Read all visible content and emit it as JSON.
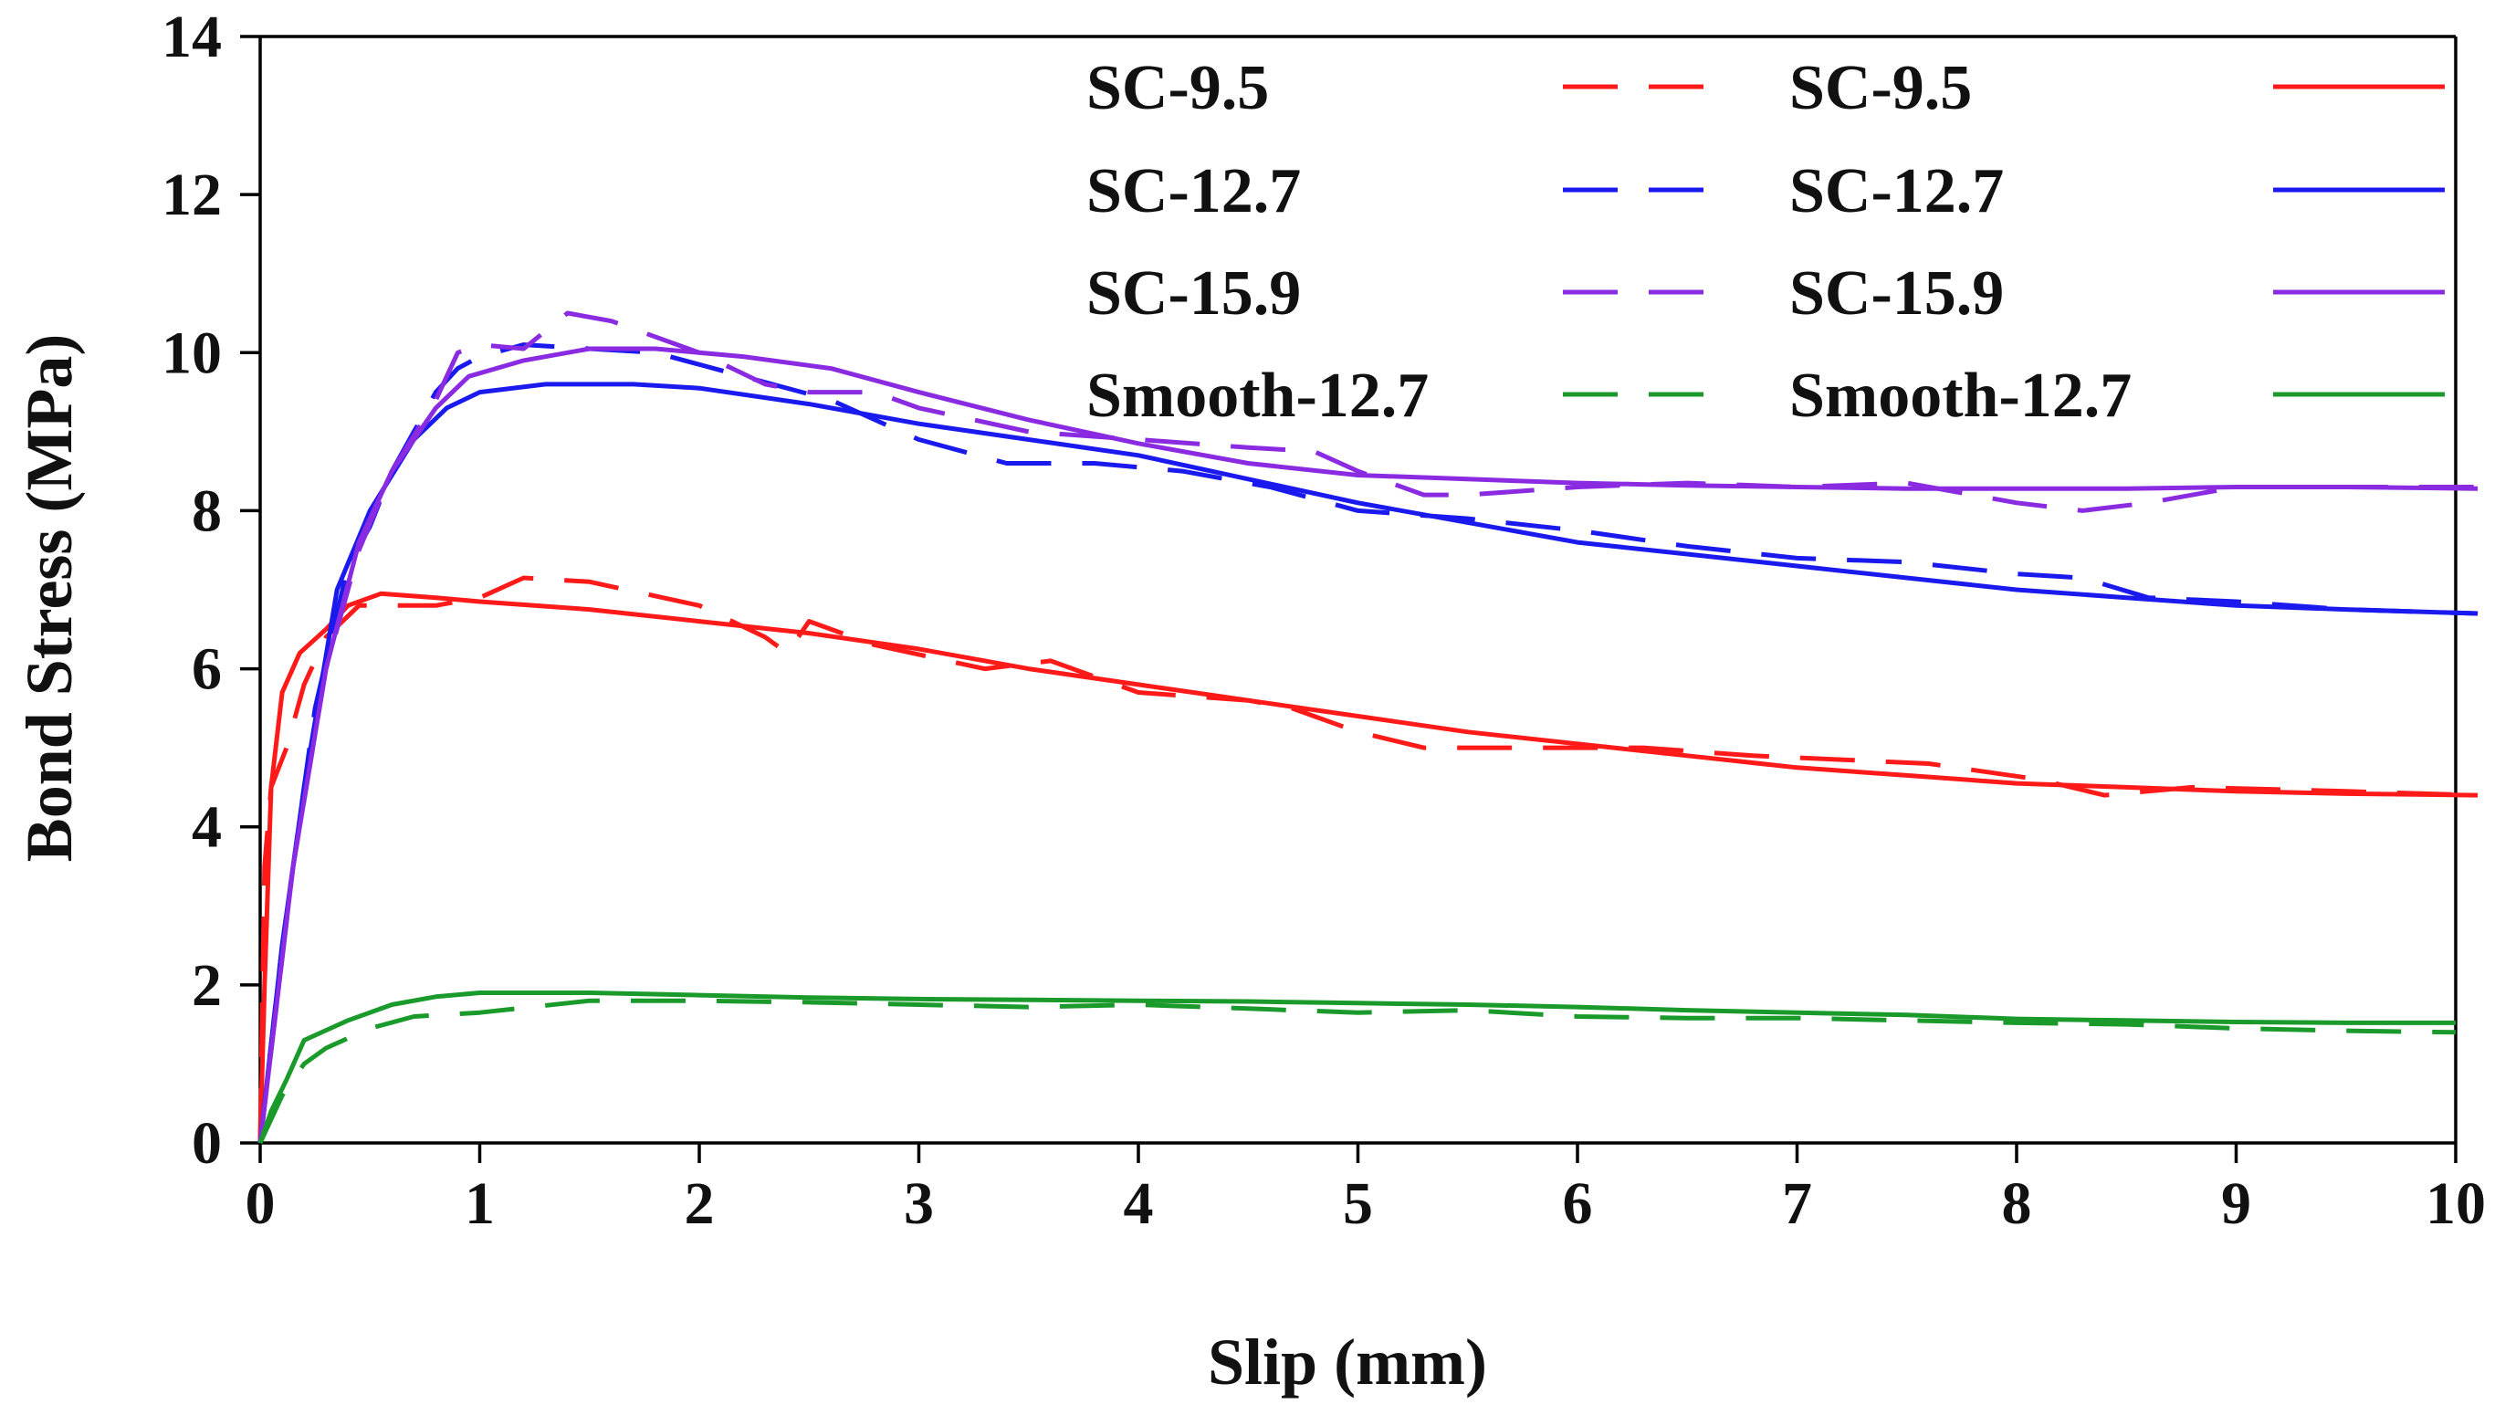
{
  "chart_data": {
    "type": "line",
    "title": "",
    "xlabel": "Slip (mm)",
    "ylabel": "Bond Stress (MPa)",
    "xlim": [
      0,
      10
    ],
    "ylim": [
      0,
      14
    ],
    "x_ticks": [
      0,
      1,
      2,
      3,
      4,
      5,
      6,
      7,
      8,
      9,
      10
    ],
    "y_ticks": [
      0,
      2,
      4,
      6,
      8,
      10,
      12,
      14
    ],
    "grid": false,
    "legend_position": "top-right",
    "series": [
      {
        "name": "SC-9.5",
        "style": "dashed",
        "color": "#ff1a1a",
        "points": [
          [
            0,
            0
          ],
          [
            0.02,
            3.5
          ],
          [
            0.05,
            4.5
          ],
          [
            0.12,
            5.0
          ],
          [
            0.2,
            5.8
          ],
          [
            0.3,
            6.4
          ],
          [
            0.45,
            6.8
          ],
          [
            0.6,
            6.8
          ],
          [
            0.8,
            6.8
          ],
          [
            1.0,
            6.9
          ],
          [
            1.2,
            7.15
          ],
          [
            1.5,
            7.1
          ],
          [
            2.0,
            6.8
          ],
          [
            2.3,
            6.4
          ],
          [
            2.4,
            6.2
          ],
          [
            2.5,
            6.6
          ],
          [
            2.8,
            6.3
          ],
          [
            3.3,
            6.0
          ],
          [
            3.6,
            6.1
          ],
          [
            4.0,
            5.7
          ],
          [
            4.5,
            5.6
          ],
          [
            4.7,
            5.5
          ],
          [
            5.0,
            5.2
          ],
          [
            5.3,
            5.0
          ],
          [
            5.7,
            5.0
          ],
          [
            6.3,
            5.0
          ],
          [
            6.8,
            4.9
          ],
          [
            7.2,
            4.85
          ],
          [
            7.6,
            4.8
          ],
          [
            8.1,
            4.6
          ],
          [
            8.4,
            4.4
          ],
          [
            8.8,
            4.5
          ],
          [
            9.5,
            4.45
          ],
          [
            10.1,
            4.4
          ]
        ]
      },
      {
        "name": "SC-9.5",
        "style": "solid",
        "color": "#ff1a1a",
        "points": [
          [
            0,
            0
          ],
          [
            0.02,
            2.0
          ],
          [
            0.05,
            4.5
          ],
          [
            0.1,
            5.7
          ],
          [
            0.18,
            6.2
          ],
          [
            0.3,
            6.5
          ],
          [
            0.4,
            6.8
          ],
          [
            0.55,
            6.95
          ],
          [
            0.8,
            6.9
          ],
          [
            1.0,
            6.85
          ],
          [
            1.5,
            6.75
          ],
          [
            2.0,
            6.6
          ],
          [
            2.5,
            6.45
          ],
          [
            3.0,
            6.25
          ],
          [
            3.5,
            6.0
          ],
          [
            4.0,
            5.8
          ],
          [
            4.5,
            5.6
          ],
          [
            5.0,
            5.4
          ],
          [
            5.5,
            5.2
          ],
          [
            6.0,
            5.05
          ],
          [
            6.5,
            4.9
          ],
          [
            7.0,
            4.75
          ],
          [
            7.5,
            4.65
          ],
          [
            8.0,
            4.55
          ],
          [
            8.5,
            4.5
          ],
          [
            9.0,
            4.45
          ],
          [
            9.5,
            4.42
          ],
          [
            10.1,
            4.4
          ]
        ]
      },
      {
        "name": "SC-12.7",
        "style": "dashed",
        "color": "#1a1aee",
        "points": [
          [
            0,
            0
          ],
          [
            0.1,
            2.5
          ],
          [
            0.25,
            5.5
          ],
          [
            0.4,
            7.3
          ],
          [
            0.5,
            7.8
          ],
          [
            0.6,
            8.5
          ],
          [
            0.7,
            9.0
          ],
          [
            0.8,
            9.5
          ],
          [
            0.9,
            9.8
          ],
          [
            1.0,
            9.95
          ],
          [
            1.2,
            10.1
          ],
          [
            1.5,
            10.05
          ],
          [
            1.8,
            10.0
          ],
          [
            2.2,
            9.7
          ],
          [
            2.6,
            9.4
          ],
          [
            3.0,
            8.9
          ],
          [
            3.4,
            8.6
          ],
          [
            3.8,
            8.6
          ],
          [
            4.2,
            8.5
          ],
          [
            4.6,
            8.3
          ],
          [
            5.0,
            8.0
          ],
          [
            5.5,
            7.9
          ],
          [
            6.0,
            7.75
          ],
          [
            6.5,
            7.55
          ],
          [
            7.0,
            7.4
          ],
          [
            7.5,
            7.35
          ],
          [
            8.0,
            7.2
          ],
          [
            8.3,
            7.15
          ],
          [
            8.6,
            6.9
          ],
          [
            9.0,
            6.85
          ],
          [
            9.5,
            6.75
          ],
          [
            10.1,
            6.7
          ]
        ]
      },
      {
        "name": "SC-12.7",
        "style": "solid",
        "color": "#1a1aee",
        "points": [
          [
            0,
            0
          ],
          [
            0.1,
            2.5
          ],
          [
            0.2,
            4.5
          ],
          [
            0.35,
            7.0
          ],
          [
            0.5,
            8.0
          ],
          [
            0.7,
            8.9
          ],
          [
            0.85,
            9.3
          ],
          [
            1.0,
            9.5
          ],
          [
            1.3,
            9.6
          ],
          [
            1.7,
            9.6
          ],
          [
            2.0,
            9.55
          ],
          [
            2.5,
            9.35
          ],
          [
            3.0,
            9.1
          ],
          [
            3.5,
            8.9
          ],
          [
            4.0,
            8.7
          ],
          [
            4.5,
            8.4
          ],
          [
            5.0,
            8.1
          ],
          [
            5.5,
            7.85
          ],
          [
            6.0,
            7.6
          ],
          [
            6.5,
            7.45
          ],
          [
            7.0,
            7.3
          ],
          [
            7.5,
            7.15
          ],
          [
            8.0,
            7.0
          ],
          [
            8.5,
            6.9
          ],
          [
            9.0,
            6.8
          ],
          [
            9.5,
            6.75
          ],
          [
            10.1,
            6.7
          ]
        ]
      },
      {
        "name": "SC-15.9",
        "style": "dashed",
        "color": "#8a2be2",
        "points": [
          [
            0,
            0
          ],
          [
            0.15,
            3.5
          ],
          [
            0.3,
            6.0
          ],
          [
            0.45,
            7.5
          ],
          [
            0.6,
            8.5
          ],
          [
            0.8,
            9.4
          ],
          [
            0.9,
            10.0
          ],
          [
            1.0,
            10.1
          ],
          [
            1.2,
            10.05
          ],
          [
            1.4,
            10.5
          ],
          [
            1.6,
            10.4
          ],
          [
            2.0,
            10.0
          ],
          [
            2.3,
            9.6
          ],
          [
            2.5,
            9.5
          ],
          [
            2.8,
            9.5
          ],
          [
            3.0,
            9.3
          ],
          [
            3.5,
            9.0
          ],
          [
            4.0,
            8.9
          ],
          [
            4.5,
            8.8
          ],
          [
            4.8,
            8.75
          ],
          [
            5.0,
            8.5
          ],
          [
            5.3,
            8.2
          ],
          [
            5.5,
            8.2
          ],
          [
            6.0,
            8.3
          ],
          [
            6.5,
            8.35
          ],
          [
            7.0,
            8.3
          ],
          [
            7.5,
            8.35
          ],
          [
            8.0,
            8.1
          ],
          [
            8.3,
            8.0
          ],
          [
            8.6,
            8.1
          ],
          [
            9.0,
            8.3
          ],
          [
            10.1,
            8.3
          ]
        ]
      },
      {
        "name": "SC-15.9",
        "style": "solid",
        "color": "#8a2be2",
        "points": [
          [
            0,
            0
          ],
          [
            0.15,
            3.5
          ],
          [
            0.3,
            6.0
          ],
          [
            0.45,
            7.6
          ],
          [
            0.6,
            8.5
          ],
          [
            0.8,
            9.3
          ],
          [
            0.95,
            9.7
          ],
          [
            1.2,
            9.9
          ],
          [
            1.5,
            10.05
          ],
          [
            1.8,
            10.05
          ],
          [
            2.2,
            9.95
          ],
          [
            2.6,
            9.8
          ],
          [
            3.0,
            9.5
          ],
          [
            3.5,
            9.15
          ],
          [
            4.0,
            8.85
          ],
          [
            4.5,
            8.6
          ],
          [
            5.0,
            8.45
          ],
          [
            5.5,
            8.4
          ],
          [
            6.0,
            8.35
          ],
          [
            6.5,
            8.32
          ],
          [
            7.0,
            8.3
          ],
          [
            7.5,
            8.28
          ],
          [
            8.0,
            8.28
          ],
          [
            8.5,
            8.28
          ],
          [
            9.0,
            8.3
          ],
          [
            9.5,
            8.3
          ],
          [
            10.1,
            8.28
          ]
        ]
      },
      {
        "name": "Smooth-12.7",
        "style": "dashed",
        "color": "#1a9a2a",
        "points": [
          [
            0,
            0
          ],
          [
            0.1,
            0.6
          ],
          [
            0.2,
            1.0
          ],
          [
            0.3,
            1.2
          ],
          [
            0.5,
            1.45
          ],
          [
            0.7,
            1.6
          ],
          [
            1.0,
            1.65
          ],
          [
            1.5,
            1.8
          ],
          [
            2.0,
            1.8
          ],
          [
            2.5,
            1.78
          ],
          [
            3.0,
            1.75
          ],
          [
            3.5,
            1.72
          ],
          [
            4.0,
            1.75
          ],
          [
            4.5,
            1.7
          ],
          [
            5.0,
            1.65
          ],
          [
            5.5,
            1.68
          ],
          [
            6.0,
            1.6
          ],
          [
            6.5,
            1.58
          ],
          [
            7.0,
            1.58
          ],
          [
            7.5,
            1.55
          ],
          [
            8.0,
            1.52
          ],
          [
            8.5,
            1.5
          ],
          [
            9.0,
            1.45
          ],
          [
            9.5,
            1.42
          ],
          [
            10.0,
            1.4
          ]
        ]
      },
      {
        "name": "Smooth-12.7",
        "style": "solid",
        "color": "#1a9a2a",
        "points": [
          [
            0,
            0
          ],
          [
            0.05,
            0.4
          ],
          [
            0.12,
            0.8
          ],
          [
            0.2,
            1.3
          ],
          [
            0.4,
            1.55
          ],
          [
            0.6,
            1.75
          ],
          [
            0.8,
            1.85
          ],
          [
            1.0,
            1.9
          ],
          [
            1.5,
            1.9
          ],
          [
            2.0,
            1.87
          ],
          [
            2.5,
            1.84
          ],
          [
            3.0,
            1.82
          ],
          [
            3.5,
            1.81
          ],
          [
            4.0,
            1.8
          ],
          [
            4.5,
            1.79
          ],
          [
            5.0,
            1.77
          ],
          [
            5.5,
            1.75
          ],
          [
            6.0,
            1.72
          ],
          [
            6.5,
            1.68
          ],
          [
            7.0,
            1.65
          ],
          [
            7.5,
            1.62
          ],
          [
            8.0,
            1.57
          ],
          [
            8.5,
            1.55
          ],
          [
            9.0,
            1.53
          ],
          [
            9.5,
            1.52
          ],
          [
            10.0,
            1.52
          ]
        ]
      }
    ]
  }
}
